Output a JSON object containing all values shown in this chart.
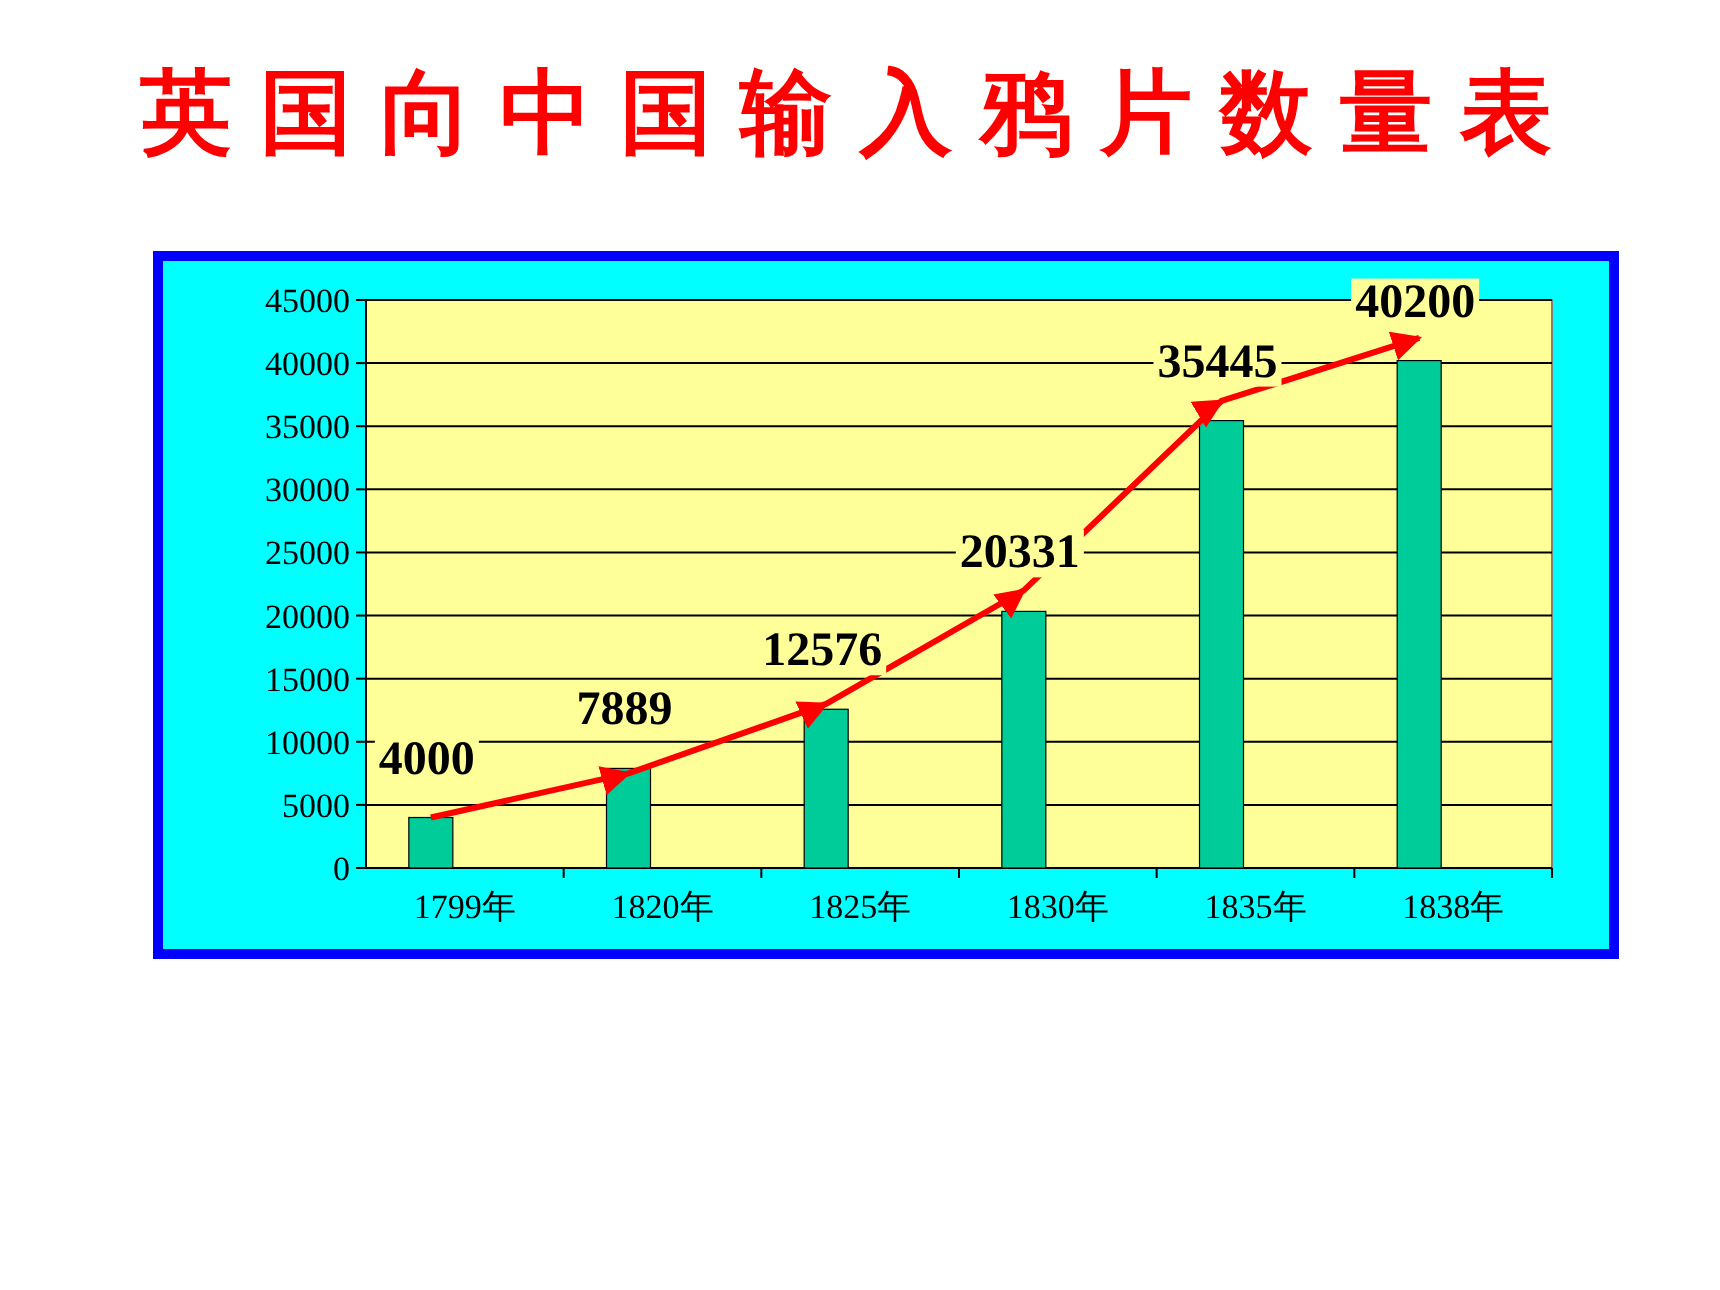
{
  "chart_data": {
    "type": "bar",
    "title": "英国向中国输入鸦片数量表",
    "categories": [
      "1799年",
      "1820年",
      "1825年",
      "1830年",
      "1835年",
      "1838年"
    ],
    "series": [
      {
        "color": "#00cc99",
        "values": [
          4000,
          7889,
          12576,
          20331,
          35445,
          40200
        ],
        "value_labels": [
          "4000",
          "7889",
          "12576",
          "20331",
          "35445",
          "40200"
        ]
      },
      {
        "type": "line",
        "color": "#ff0000",
        "values": [
          4000,
          7500,
          13000,
          22000,
          37000,
          42000
        ]
      }
    ],
    "ylim": [
      0,
      45000
    ],
    "yticks": [
      0,
      5000,
      10000,
      15000,
      20000,
      25000,
      30000,
      35000,
      40000,
      45000
    ],
    "grid": "y"
  }
}
